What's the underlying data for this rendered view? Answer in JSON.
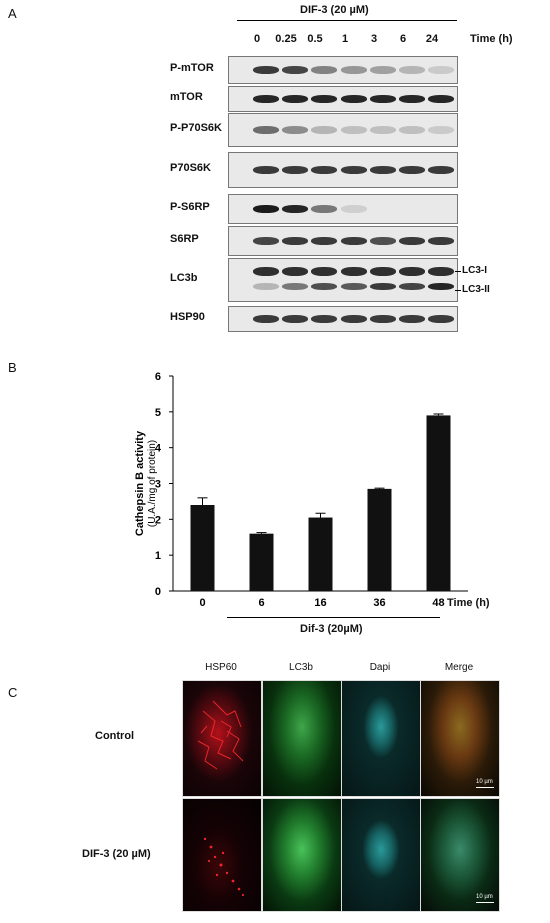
{
  "panelA": {
    "letter": "A",
    "treatment": "DIF-3 (20 µM)",
    "time_label": "Time (h)",
    "times": [
      "0",
      "0.25",
      "0.5",
      "1",
      "3",
      "6",
      "24"
    ],
    "blots": [
      {
        "label": "P-mTOR",
        "intensity": [
          0.85,
          0.8,
          0.5,
          0.4,
          0.35,
          0.25,
          0.15
        ]
      },
      {
        "label": "mTOR",
        "intensity": [
          0.95,
          0.95,
          0.95,
          0.95,
          0.95,
          0.95,
          0.95
        ]
      },
      {
        "label": "P-P70S6K",
        "intensity": [
          0.6,
          0.45,
          0.25,
          0.2,
          0.2,
          0.2,
          0.15
        ]
      },
      {
        "label": "P70S6K",
        "intensity": [
          0.85,
          0.85,
          0.85,
          0.85,
          0.85,
          0.85,
          0.85
        ]
      },
      {
        "label": "P-S6RP",
        "intensity": [
          1.0,
          0.95,
          0.55,
          0.12,
          0.0,
          0.0,
          0.0
        ]
      },
      {
        "label": "S6RP",
        "intensity": [
          0.8,
          0.85,
          0.85,
          0.85,
          0.75,
          0.85,
          0.85
        ]
      },
      {
        "label": "LC3b",
        "intensity": [
          1.0,
          1.0,
          1.0,
          1.0,
          1.0,
          1.0,
          1.0
        ]
      },
      {
        "label": "HSP90",
        "intensity": [
          0.85,
          0.85,
          0.85,
          0.85,
          0.85,
          0.85,
          0.85
        ]
      }
    ],
    "lc3_labels": [
      "LC3-I",
      "LC3-II"
    ]
  },
  "panelB": {
    "letter": "B",
    "xlabel": "Time (h)",
    "treatment": "Dif-3 (20µM)",
    "ylabel_line1": "Cathepsin B activity",
    "ylabel_line2": "(U.A./mg of protein)"
  },
  "chart_data": {
    "type": "bar",
    "categories": [
      "0",
      "6",
      "16",
      "36",
      "48"
    ],
    "values": [
      2.4,
      1.6,
      2.05,
      2.85,
      4.9
    ],
    "errors": [
      0.2,
      0.03,
      0.12,
      0.02,
      0.04
    ],
    "title": "",
    "xlabel": "Time (h)",
    "ylabel": "Cathepsin B activity (U.A./mg of protein)",
    "ylim": [
      0,
      6
    ],
    "yticks": [
      "0",
      "1",
      "2",
      "3",
      "4",
      "5",
      "6"
    ]
  },
  "panelC": {
    "letter": "C",
    "columns": [
      "HSP60",
      "LC3b",
      "Dapi",
      "Merge"
    ],
    "rows": [
      "Control",
      "DIF-3 (20 µM)"
    ],
    "scale": "10 µm"
  }
}
